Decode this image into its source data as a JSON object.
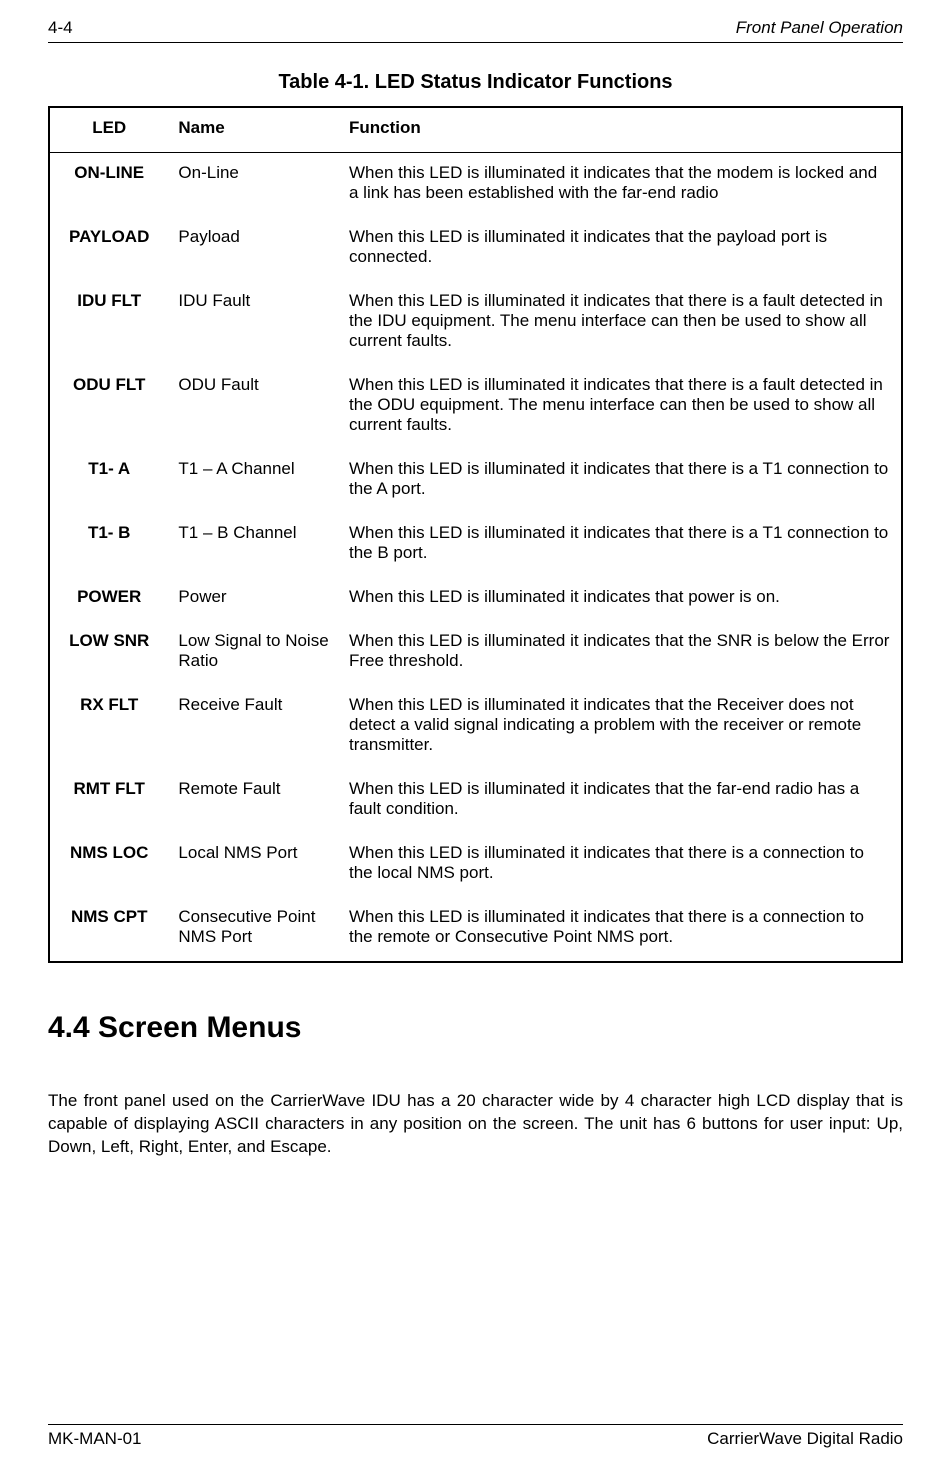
{
  "header": {
    "left": "4-4",
    "right": "Front Panel Operation"
  },
  "table": {
    "caption": "Table 4-1.  LED Status Indicator Functions",
    "columns": [
      "LED",
      "Name",
      "Function"
    ],
    "rows": [
      {
        "led": "ON-LINE",
        "name": "On-Line",
        "function": "When this LED is illuminated it indicates that the modem is locked and a link has been established with the far-end radio"
      },
      {
        "led": "PAYLOAD",
        "name": "Payload",
        "function": "When this LED is illuminated it indicates that the payload port is connected."
      },
      {
        "led": "IDU FLT",
        "name": "IDU Fault",
        "function": "When this LED is illuminated it indicates that there is a fault detected in the IDU equipment.  The menu interface can then be used to show all current faults."
      },
      {
        "led": "ODU FLT",
        "name": "ODU Fault",
        "function": "When this LED is illuminated it indicates that there is a fault detected in the ODU equipment.  The menu interface can then be used to show all current faults."
      },
      {
        "led": "T1- A",
        "name": "T1 – A Channel",
        "function": "When this LED is illuminated it indicates that there is a T1 connection to the A port."
      },
      {
        "led": "T1- B",
        "name": "T1 – B Channel",
        "function": "When this LED is illuminated it indicates that there is a T1 connection to the B port."
      },
      {
        "led": "POWER",
        "name": "Power",
        "function": "When this LED is illuminated it indicates that power is on."
      },
      {
        "led": "LOW SNR",
        "name": "Low Signal to Noise Ratio",
        "function": "When this LED is illuminated it indicates that the SNR is below the Error Free threshold."
      },
      {
        "led": "RX FLT",
        "name": "Receive Fault",
        "function": "When this LED is illuminated it indicates that the Receiver does not detect a valid signal indicating a problem with the receiver or remote transmitter."
      },
      {
        "led": "RMT FLT",
        "name": "Remote Fault",
        "function": "When this LED is illuminated it indicates that the far-end radio has a fault condition."
      },
      {
        "led": "NMS LOC",
        "name": "Local NMS Port",
        "function": "When this LED is illuminated it indicates that there is a connection to the local NMS port."
      },
      {
        "led": "NMS CPT",
        "name": "Consecutive Point NMS Port",
        "function": "When this LED is illuminated it indicates that there is a connection to the remote or Consecutive Point NMS port."
      }
    ]
  },
  "section": {
    "title": "4.4 Screen Menus",
    "paragraph": "The front panel used on the CarrierWave IDU has a 20 character wide by 4 character high LCD display that is capable of displaying ASCII characters in any position on the screen.  The unit has 6 buttons for user input: Up, Down, Left, Right, Enter, and Escape."
  },
  "footer": {
    "left": "MK-MAN-01",
    "right": "CarrierWave Digital Radio"
  }
}
